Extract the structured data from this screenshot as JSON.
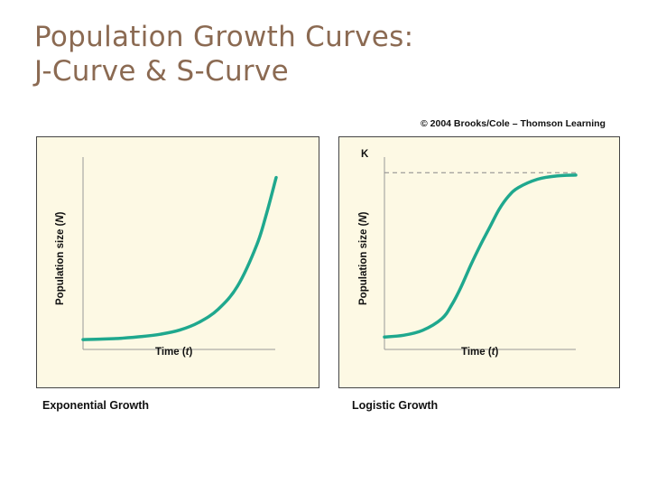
{
  "slide": {
    "title_line1": "Population Growth Curves:",
    "title_line2": "J-Curve & S-Curve",
    "copyright": "© 2004 Brooks/Cole – Thomson Learning",
    "title_color": "#8b6a52",
    "curve_color": "#1fa88e",
    "panel_bg": "#fdf9e4"
  },
  "chart_data": [
    {
      "type": "line",
      "title": "",
      "caption": "Exponential Growth",
      "xlabel_pre": "Time (",
      "xlabel_var": "t",
      "xlabel_post": ")",
      "ylabel_pre": "Population size (",
      "ylabel_var": "N",
      "ylabel_post": ")",
      "xlim": [
        0,
        10
      ],
      "ylim": [
        0,
        100
      ],
      "ticks": "none",
      "grid": false,
      "series": [
        {
          "x": [
            0,
            1,
            2,
            3,
            4,
            5,
            6,
            7,
            8,
            9,
            9.5,
            10
          ],
          "y": [
            1,
            1.3,
            1.8,
            2.7,
            4.1,
            6.5,
            11,
            18.6,
            32,
            56,
            74,
            95
          ]
        }
      ]
    },
    {
      "type": "line",
      "title": "",
      "caption": "Logistic Growth",
      "xlabel_pre": "Time (",
      "xlabel_var": "t",
      "xlabel_post": ")",
      "ylabel_pre": "Population size (",
      "ylabel_var": "N",
      "ylabel_post": ")",
      "carrying_capacity_label": "K",
      "carrying_capacity": 100,
      "xlim": [
        0,
        10
      ],
      "ylim": [
        0,
        105
      ],
      "ticks": "none",
      "grid": false,
      "series": [
        {
          "x": [
            0,
            1,
            2,
            3,
            3.5,
            4,
            4.5,
            5,
            5.5,
            6,
            6.5,
            7,
            8,
            9,
            10
          ],
          "y": [
            1,
            2,
            5,
            12,
            20,
            31,
            44,
            56,
            67,
            78,
            86,
            91,
            96,
            98,
            98.5
          ]
        }
      ]
    }
  ]
}
